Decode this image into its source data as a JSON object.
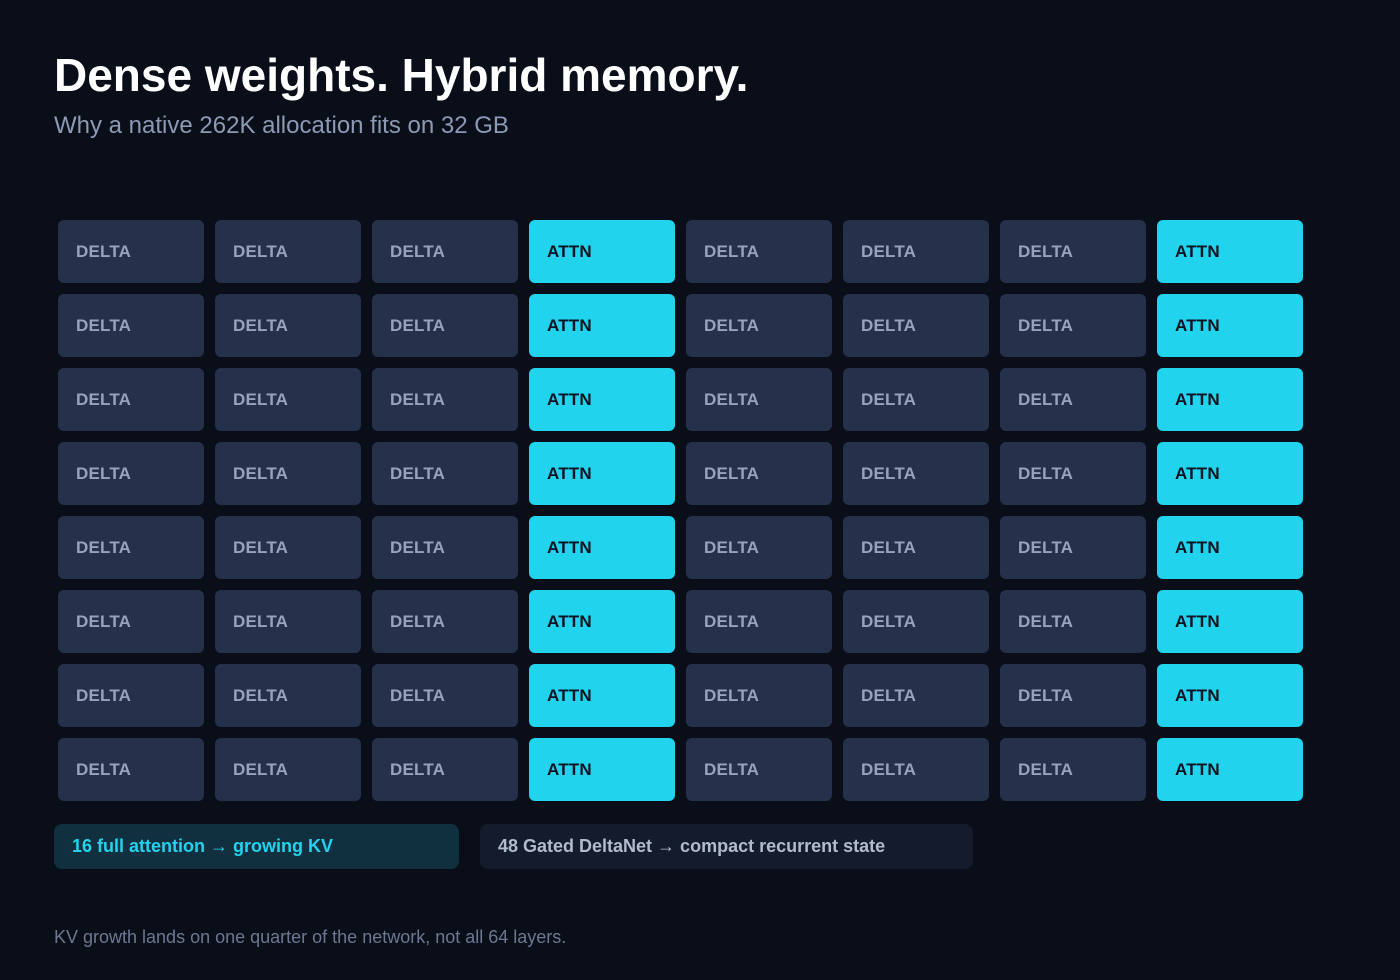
{
  "header": {
    "title": "Dense weights. Hybrid memory.",
    "subtitle": "Why a native 262K allocation fits on 32 GB"
  },
  "grid": {
    "pattern": [
      "DELTA",
      "DELTA",
      "DELTA",
      "ATTN",
      "DELTA",
      "DELTA",
      "DELTA",
      "ATTN"
    ],
    "rows": 8,
    "labels": {
      "delta": "DELTA",
      "attn": "ATTN"
    }
  },
  "legend": {
    "attention": "16 full attention → growing KV",
    "deltanet": "48 Gated DeltaNet → compact recurrent state"
  },
  "footnote": "KV growth lands on one quarter of the network, not all 64 layers.",
  "colors": {
    "background": "#0a0e19",
    "attention": "#22d3ee",
    "delta": "#25314b"
  }
}
